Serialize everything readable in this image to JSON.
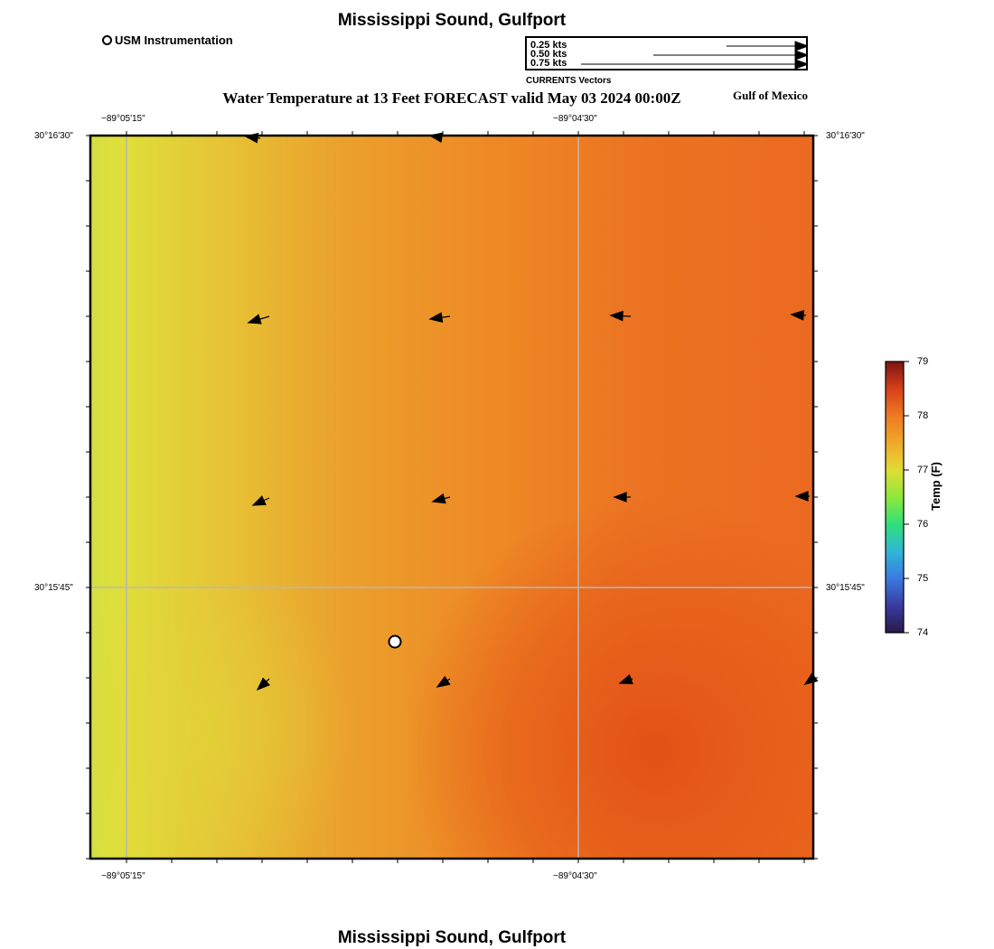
{
  "titles": {
    "top": "Mississippi Sound, Gulfport",
    "bottom": "Mississippi Sound, Gulfport",
    "subtitle": "Water Temperature at 13 Feet FORECAST valid May 03 2024 00:00Z",
    "region": "Gulf of Mexico"
  },
  "legend": {
    "station_label": "USM Instrumentation",
    "vector_scale": [
      "0.25 kts",
      "0.50 kts",
      "0.75 kts"
    ],
    "vector_caption": "CURRENTS Vectors"
  },
  "axes": {
    "lon_ticks": [
      "−89°05'15\"",
      "−89°04'30\""
    ],
    "lat_ticks": [
      "30°16'30\"",
      "30°15'45\""
    ]
  },
  "colorbar": {
    "title": "Temp (F)",
    "ticks": [
      "79",
      "78",
      "77",
      "76",
      "75",
      "74"
    ],
    "min": 74,
    "max": 79
  },
  "colors": {
    "warm": "#e8581a",
    "mid": "#ef8d22",
    "cool": "#dede3a"
  }
}
